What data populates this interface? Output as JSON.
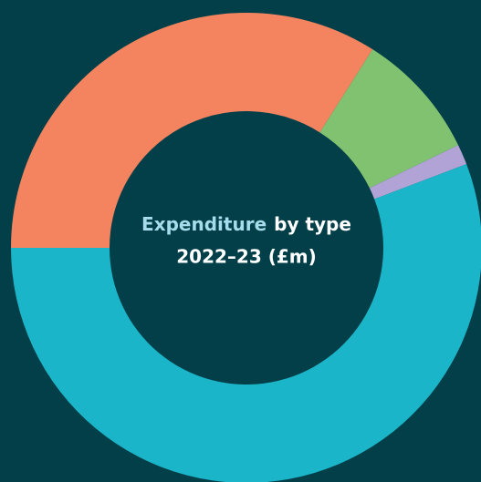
{
  "chart_data": {
    "type": "donut",
    "title": {
      "highlight": "Expenditure",
      "rest": "by type"
    },
    "subtitle": "2022–23 (£m)",
    "categories": [
      null,
      null,
      null,
      null
    ],
    "values": [
      34,
      8.8,
      1.4,
      55.8
    ],
    "colors": [
      "#f4845f",
      "#80c270",
      "#b1a3d6",
      "#1bb5c9"
    ]
  }
}
